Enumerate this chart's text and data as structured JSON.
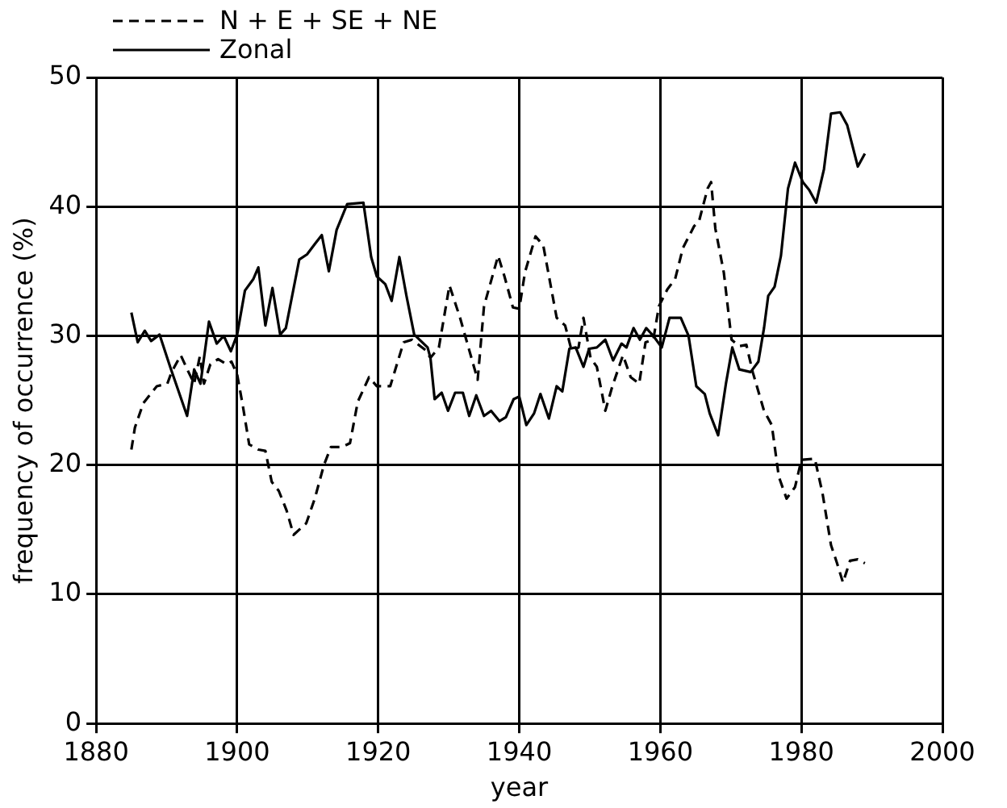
{
  "chart_data": {
    "type": "line",
    "xlabel": "year",
    "ylabel": "frequency of occurrence (%)",
    "xlim": [
      1880,
      2000
    ],
    "xticks": [
      1880,
      1900,
      1920,
      1940,
      1960,
      1980,
      2000
    ],
    "ylim": [
      0,
      50
    ],
    "yticks": [
      0,
      10,
      20,
      30,
      40,
      50
    ],
    "grid": true,
    "legend": "top left",
    "marker": "none",
    "series": [
      {
        "name": "N + E + SE + NE",
        "color": "#000000",
        "line_style": "dashed",
        "x": [
          1885,
          1885.5,
          1886.7,
          1888.6,
          1890.1,
          1890.7,
          1892,
          1893.1,
          1893.9,
          1894.7,
          1895.3,
          1896.2,
          1897.3,
          1898.5,
          1899.2,
          1900,
          1900.8,
          1901.7,
          1903,
          1904,
          1904.9,
          1905.9,
          1907,
          1908,
          1909.8,
          1911,
          1912.3,
          1913.3,
          1914.9,
          1916,
          1917.1,
          1918.7,
          1919.8,
          1921.7,
          1923.6,
          1924.8,
          1926.7,
          1927.4,
          1928.6,
          1930.1,
          1931.6,
          1932.9,
          1934.1,
          1935,
          1937,
          1937.9,
          1939.1,
          1940,
          1940.8,
          1942.3,
          1943.4,
          1945.3,
          1946.5,
          1947.4,
          1948.4,
          1949.1,
          1950.1,
          1951,
          1952.2,
          1953.2,
          1954.7,
          1955.8,
          1957,
          1957.9,
          1959,
          1959.8,
          1961,
          1962.1,
          1963.2,
          1964.8,
          1965.5,
          1966.7,
          1967.2,
          1967.8,
          1969,
          1970.1,
          1971.2,
          1972.2,
          1973.1,
          1974.7,
          1975.8,
          1976.8,
          1977.9,
          1979.1,
          1980,
          1981.9,
          1983,
          1984.2,
          1985,
          1985.9,
          1986.9,
          1988,
          1989
        ],
        "values": [
          21.2,
          22.9,
          24.8,
          26.1,
          26.3,
          27.2,
          28.5,
          27.2,
          26.3,
          28.4,
          26.3,
          27.8,
          28.2,
          27.8,
          28,
          27,
          24.6,
          21.6,
          21.2,
          21.1,
          18.7,
          18,
          16.5,
          14.6,
          15.5,
          17.4,
          20,
          21.4,
          21.4,
          21.7,
          24.9,
          26.8,
          26.1,
          26.1,
          29.5,
          29.7,
          28.9,
          28.3,
          29.1,
          33.9,
          31.4,
          28.9,
          26.6,
          32.3,
          36.2,
          34.6,
          32.2,
          32.1,
          34.9,
          37.7,
          37,
          31.4,
          30.8,
          28.9,
          29.1,
          31.4,
          28.3,
          27.6,
          24.2,
          26.1,
          28.5,
          26.8,
          26.3,
          29.5,
          29.7,
          32.3,
          33.6,
          34.4,
          36.8,
          38.5,
          38.9,
          41.4,
          41.9,
          38.3,
          34.9,
          29.7,
          29.2,
          29.3,
          27.2,
          24.2,
          23.1,
          19.1,
          17.4,
          18.3,
          20.4,
          20.5,
          17.8,
          13.8,
          12.5,
          10.9,
          12.6,
          12.7,
          12.4
        ]
      },
      {
        "name": "Zonal",
        "color": "#000000",
        "line_style": "solid",
        "x": [
          1885,
          1885.9,
          1886.9,
          1887.8,
          1889,
          1890.5,
          1892.9,
          1893.9,
          1894.8,
          1896,
          1897.1,
          1898.1,
          1899.1,
          1900,
          1901.1,
          1902.3,
          1903,
          1904,
          1905,
          1906.1,
          1906.9,
          1908.8,
          1909.9,
          1911,
          1912,
          1913,
          1914.1,
          1915.6,
          1917.9,
          1919,
          1919.8,
          1921,
          1921.9,
          1923,
          1924,
          1925.1,
          1927,
          1927.4,
          1928,
          1929,
          1929.9,
          1930.9,
          1932,
          1932.9,
          1933.9,
          1935,
          1936,
          1937.2,
          1938.1,
          1939.2,
          1940,
          1941,
          1942.1,
          1943,
          1944.2,
          1945.3,
          1946.1,
          1947.1,
          1948,
          1949.1,
          1949.9,
          1951,
          1952.2,
          1953.3,
          1954.5,
          1955.2,
          1956.2,
          1957.1,
          1958,
          1959,
          1960.2,
          1961.3,
          1962.9,
          1964,
          1965.1,
          1966.3,
          1967,
          1968.2,
          1969.3,
          1970.2,
          1971.2,
          1972.8,
          1973.9,
          1974.7,
          1975.3,
          1976.2,
          1977.1,
          1978.1,
          1979.1,
          1980.2,
          1981.1,
          1982.1,
          1983.2,
          1984.2,
          1985.5,
          1986.5,
          1988,
          1989
        ],
        "values": [
          31.8,
          29.5,
          30.4,
          29.6,
          30.1,
          27.6,
          23.8,
          27.4,
          26.3,
          31.1,
          29.4,
          30,
          28.8,
          30.1,
          33.5,
          34.4,
          35.3,
          30.8,
          33.7,
          30.1,
          30.6,
          35.9,
          36.3,
          37.1,
          37.8,
          35,
          38.2,
          40.2,
          40.3,
          36.1,
          34.6,
          34,
          32.7,
          36.1,
          33.1,
          30.1,
          29.1,
          28.3,
          25.1,
          25.6,
          24.2,
          25.6,
          25.6,
          23.8,
          25.4,
          23.8,
          24.2,
          23.4,
          23.7,
          25.1,
          25.3,
          23.1,
          24,
          25.5,
          23.6,
          26.1,
          25.7,
          29,
          29.1,
          27.6,
          29,
          29.1,
          29.7,
          28.1,
          29.4,
          29.1,
          30.6,
          29.7,
          30.6,
          30,
          29.1,
          31.4,
          31.4,
          30,
          26.1,
          25.5,
          24,
          22.3,
          26.3,
          29.1,
          27.4,
          27.2,
          28,
          30.6,
          33.1,
          33.8,
          36.2,
          41.4,
          43.4,
          41.9,
          41.3,
          40.3,
          42.9,
          47.2,
          47.3,
          46.3,
          43.1,
          44.1
        ]
      }
    ]
  }
}
